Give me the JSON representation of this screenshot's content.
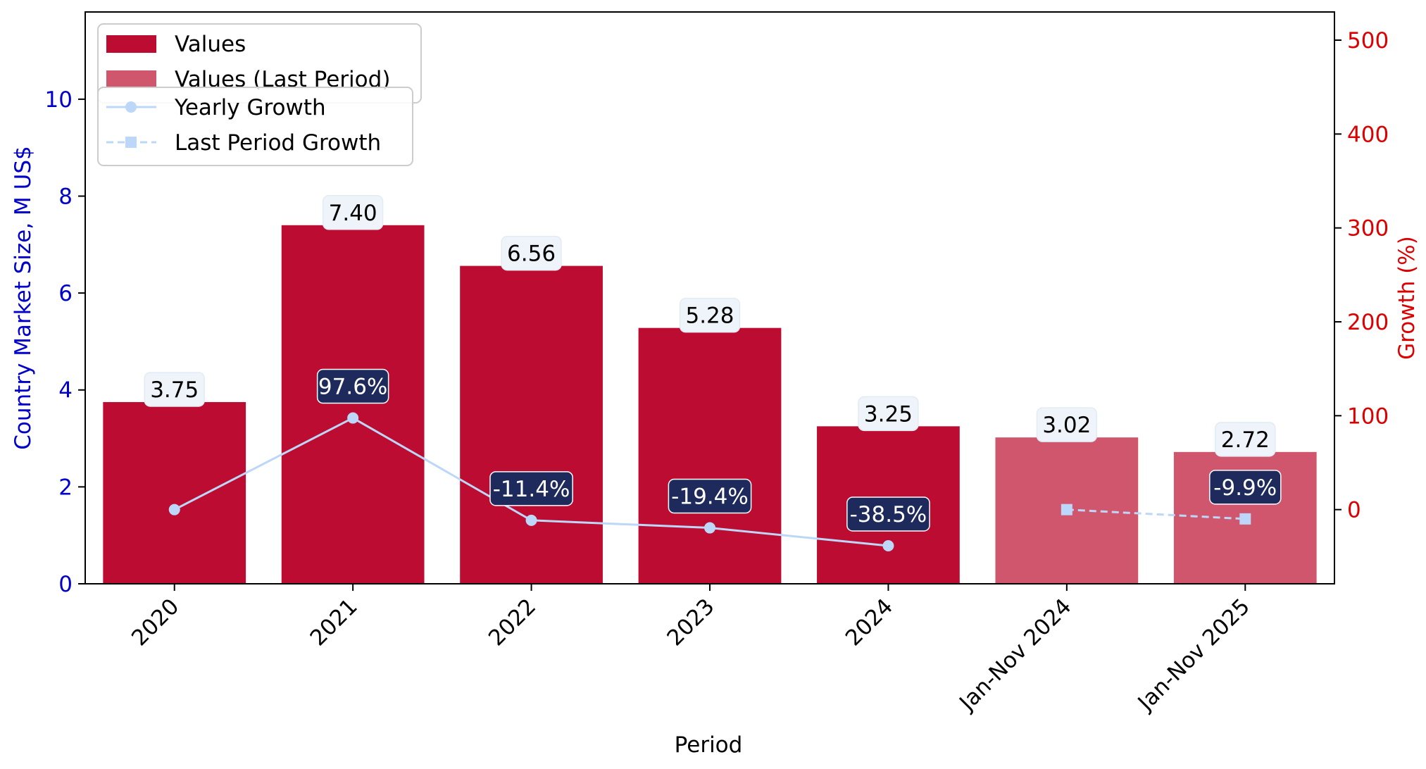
{
  "chart_data": {
    "type": "bar",
    "categories": [
      "2020",
      "2021",
      "2022",
      "2023",
      "2024",
      "Jan-Nov 2024",
      "Jan-Nov 2025"
    ],
    "xlabel": "Period",
    "ylabel": "Country Market Size, M US$",
    "y2label": "Growth (%)",
    "ylim": [
      0,
      11.8
    ],
    "y2lim": [
      -79,
      530
    ],
    "yticks": [
      "0",
      "2",
      "4",
      "6",
      "8",
      "10"
    ],
    "y2ticks": [
      "0",
      "100",
      "200",
      "300",
      "400",
      "500"
    ],
    "grid": false,
    "series": [
      {
        "name": "Values",
        "kind": "bar",
        "color": "#bc0c31",
        "values": [
          3.75,
          7.4,
          6.56,
          5.28,
          3.25,
          null,
          null
        ],
        "labels": [
          "3.75",
          "7.40",
          "6.56",
          "5.28",
          "3.25",
          "",
          ""
        ]
      },
      {
        "name": "Values (Last Period)",
        "kind": "bar",
        "color": "#d0566e",
        "values": [
          null,
          null,
          null,
          null,
          null,
          3.02,
          2.72
        ],
        "labels": [
          "",
          "",
          "",
          "",
          "",
          "3.02",
          "2.72"
        ]
      },
      {
        "name": "Yearly Growth",
        "kind": "line",
        "axis": "right",
        "color": "#bcd7f7",
        "marker": "circle",
        "values": [
          0,
          97.6,
          -11.4,
          -19.4,
          -38.5,
          null,
          null
        ],
        "labels": [
          "",
          "97.6%",
          "-11.4%",
          "-19.4%",
          "-38.5%",
          "",
          ""
        ]
      },
      {
        "name": "Last Period Growth",
        "kind": "line",
        "axis": "right",
        "color": "#bcd7f7",
        "marker": "square",
        "dashed": true,
        "values": [
          null,
          null,
          null,
          null,
          null,
          0,
          -9.9
        ],
        "labels": [
          "",
          "",
          "",
          "",
          "",
          "",
          "-9.9%"
        ]
      }
    ],
    "legend": {
      "placement": "top-left",
      "bars": [
        "Values",
        "Values (Last Period)"
      ],
      "lines": [
        "Yearly Growth",
        "Last Period Growth"
      ]
    },
    "colors": {
      "left_axis": "#0000cc",
      "right_axis": "#dd0000",
      "value_label_bg": "#eef4fa",
      "growth_label_bg": "#1f2a5c"
    }
  }
}
